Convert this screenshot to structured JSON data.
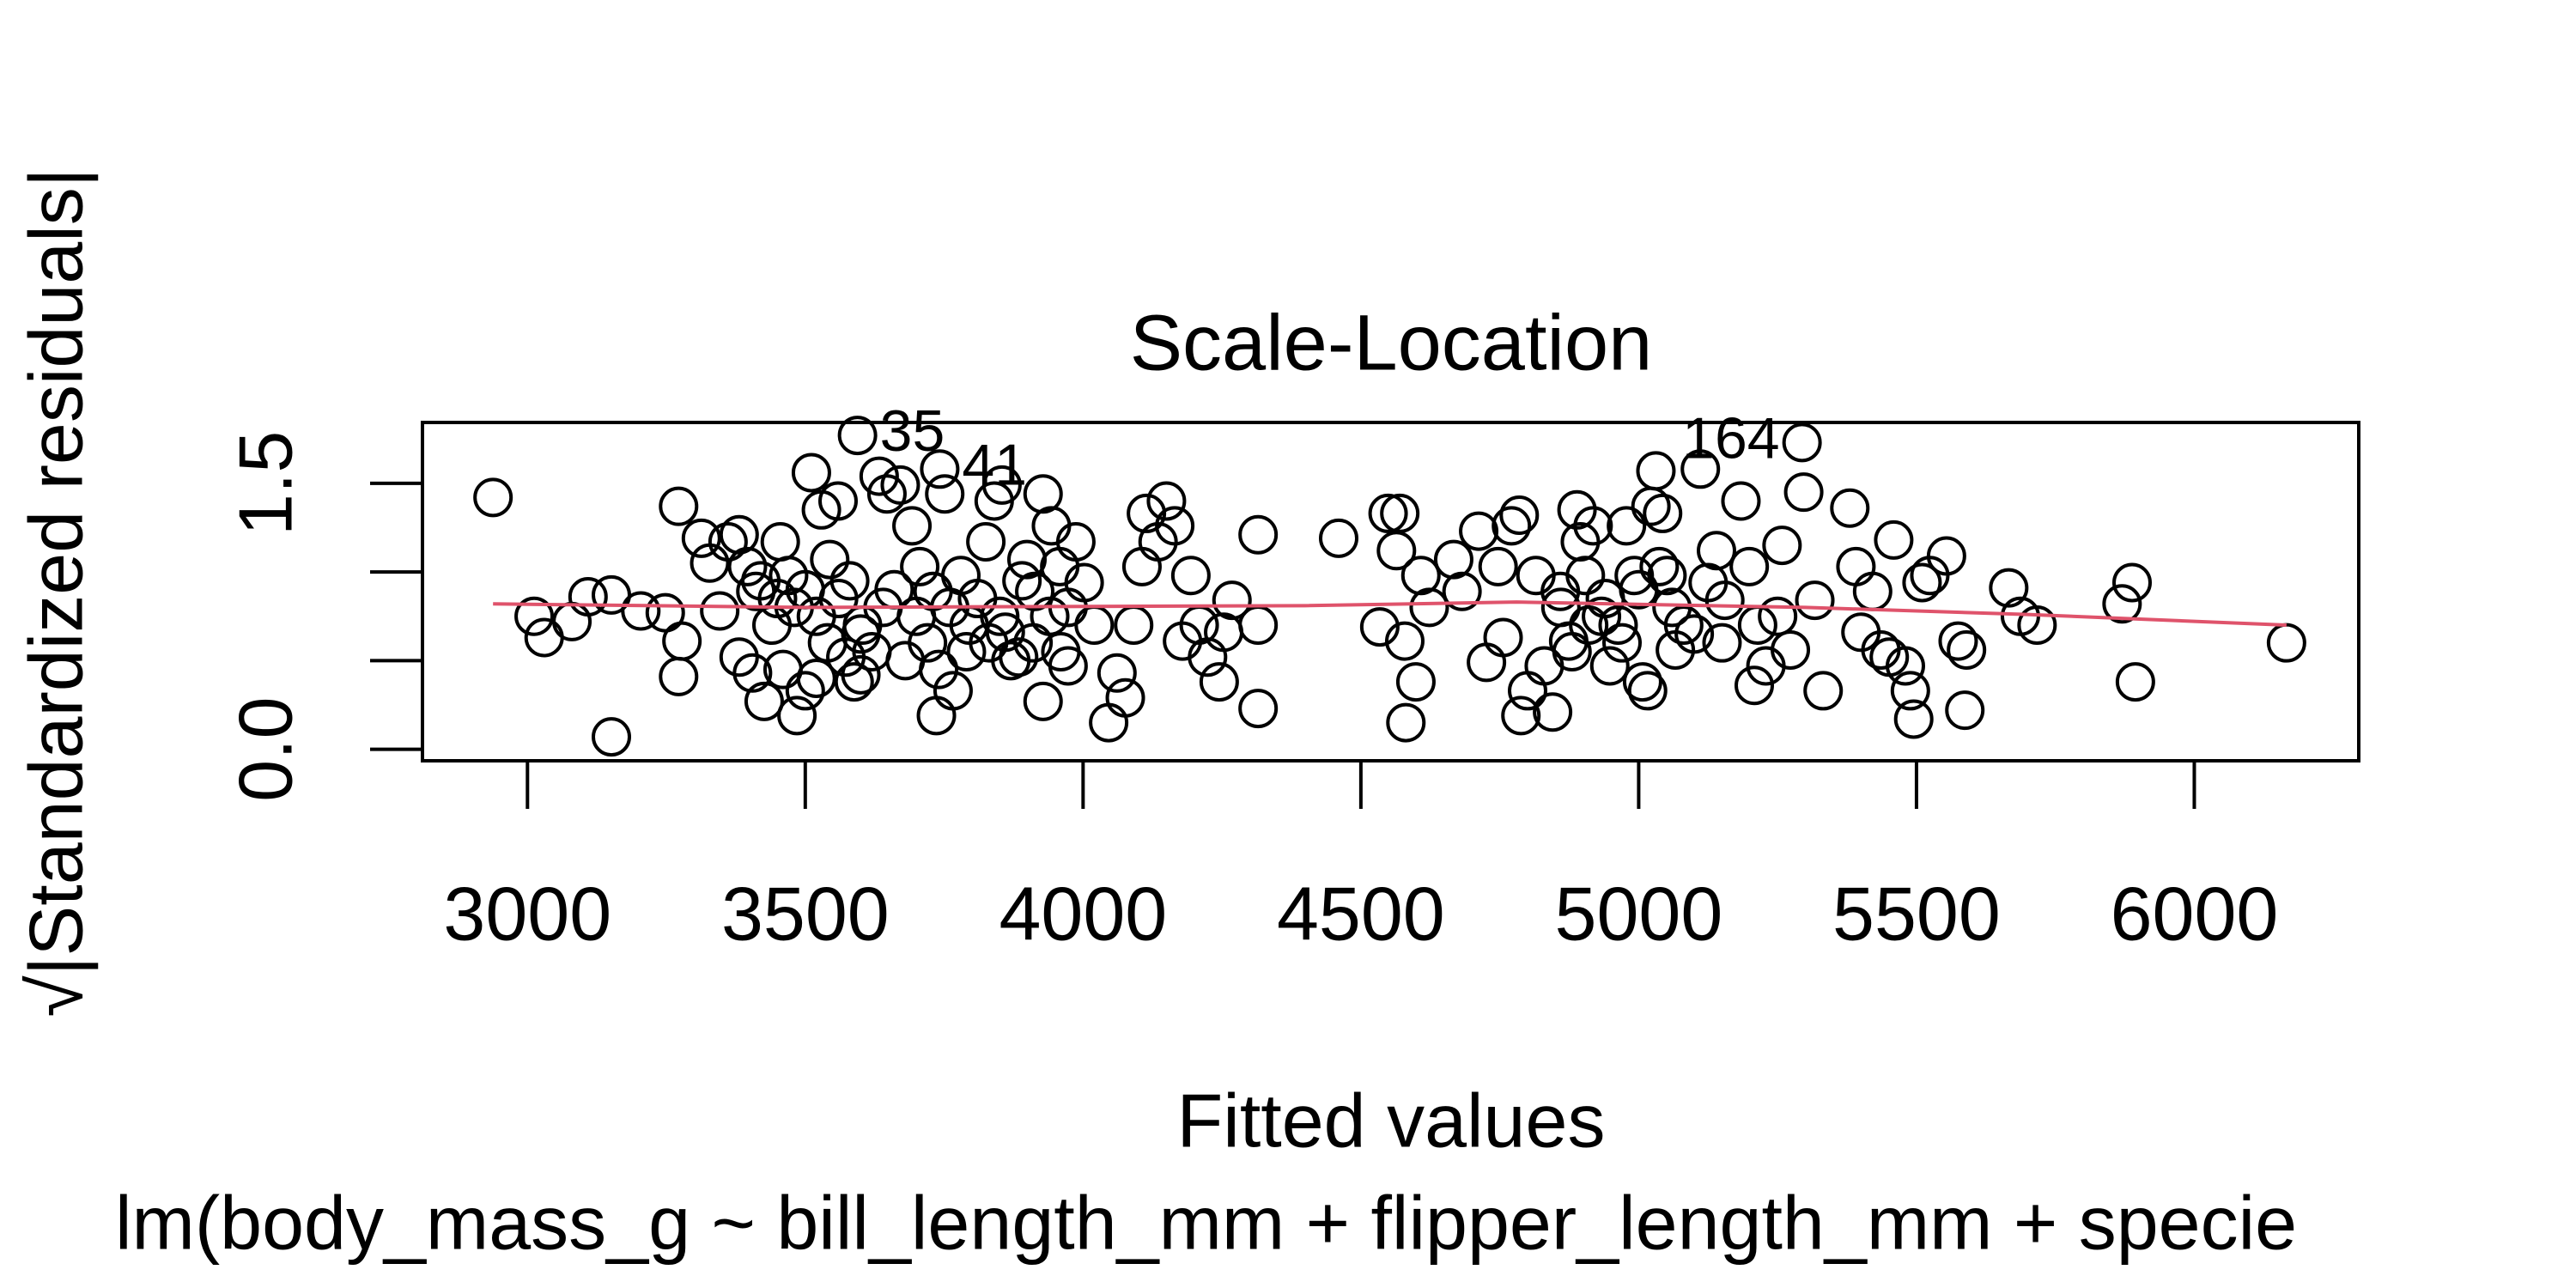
{
  "chart_data": {
    "type": "scatter",
    "title": "Scale-Location",
    "x_label": "Fitted values",
    "y_label": "√|Standardized residuals|",
    "subtitle": "lm(body_mass_g ~ bill_length_mm + flipper_length_mm + specie",
    "x": [
      2938,
      3012,
      3030,
      3080,
      3109,
      3151,
      3151,
      3204,
      3248,
      3272,
      3272,
      3278,
      3313,
      3328,
      3346,
      3361,
      3381,
      3396,
      3411,
      3381,
      3405,
      3426,
      3440,
      3455,
      3470,
      3485,
      3500,
      3511,
      3529,
      3544,
      3559,
      3573,
      3588,
      3603,
      3594,
      3633,
      3647,
      3671,
      3692,
      3706,
      3730,
      3742,
      3751,
      3736,
      3766,
      3780,
      3795,
      3825,
      3840,
      3854,
      3860,
      3884,
      3899,
      3913,
      3928,
      3943,
      3958,
      3973,
      3987,
      4002,
      3928,
      3973,
      4046,
      4061,
      4076,
      4091,
      4106,
      4114,
      4135,
      4150,
      4165,
      4179,
      4194,
      4209,
      4224,
      4245,
      4253,
      4268,
      4315,
      4315,
      4315,
      4460,
      4534,
      4549,
      4564,
      4570,
      4579,
      4581,
      4599,
      4608,
      4623,
      4667,
      4682,
      4712,
      4726,
      4747,
      4756,
      4771,
      4785,
      4788,
      4800,
      4815,
      4830,
      4845,
      4859,
      4874,
      4889,
      4895,
      4904,
      4918,
      4933,
      4948,
      4963,
      4978,
      4992,
      5007,
      5016,
      5022,
      5031,
      5037,
      5043,
      5051,
      5066,
      5081,
      5111,
      5125,
      5140,
      5155,
      5184,
      5199,
      5208,
      5214,
      5229,
      5258,
      5273,
      5294,
      5297,
      5317,
      5332,
      5380,
      5391,
      5400,
      5421,
      5436,
      5451,
      5459,
      5480,
      5489,
      5495,
      5510,
      5524,
      5554,
      5575,
      5587,
      5590,
      5666,
      5687,
      5717,
      5870,
      5888,
      5894,
      6166,
      3420,
      3450,
      3480,
      3500,
      3520,
      3540,
      3560,
      3580,
      3600,
      3620,
      3640,
      3660,
      3680,
      3700,
      3720,
      3740,
      3760,
      3790,
      3810,
      3830,
      3850,
      3870,
      3890,
      3910,
      3940,
      3960,
      4020,
      4860,
      4880,
      4910,
      4940,
      4970,
      5000,
      5060,
      5100,
      5150,
      5250,
      3460,
      3520,
      3600
    ],
    "values": [
      1.42,
      0.75,
      0.63,
      0.72,
      0.86,
      0.87,
      0.07,
      0.78,
      0.77,
      1.37,
      0.41,
      0.61,
      1.19,
      1.05,
      0.78,
      1.17,
      1.21,
      1.03,
      0.89,
      0.52,
      0.43,
      0.27,
      0.7,
      1.17,
      0.98,
      0.19,
      0.33,
      1.56,
      1.35,
      1.07,
      1.4,
      0.52,
      0.38,
      0.7,
      1.77,
      1.54,
      1.44,
      1.49,
      1.26,
      1.03,
      0.89,
      1.58,
      1.44,
      0.19,
      0.33,
      0.98,
      0.7,
      1.17,
      1.4,
      1.49,
      0.66,
      0.52,
      1.07,
      0.89,
      1.44,
      1.26,
      1.03,
      0.8,
      1.17,
      0.94,
      0.27,
      0.47,
      0.15,
      0.43,
      0.29,
      0.7,
      1.03,
      1.33,
      1.17,
      1.4,
      1.26,
      0.61,
      0.98,
      0.7,
      0.52,
      0.38,
      0.66,
      0.84,
      1.21,
      0.7,
      0.23,
      1.19,
      0.69,
      1.33,
      1.12,
      1.33,
      0.61,
      0.15,
      0.38,
      0.98,
      0.8,
      1.07,
      0.89,
      1.23,
      0.49,
      1.03,
      0.63,
      1.26,
      1.32,
      0.19,
      0.33,
      0.98,
      0.47,
      0.21,
      0.89,
      0.61,
      1.35,
      1.17,
      0.98,
      1.26,
      0.75,
      0.47,
      0.7,
      1.26,
      0.98,
      0.38,
      0.33,
      1.37,
      1.57,
      1.03,
      1.33,
      0.98,
      0.56,
      0.7,
      1.58,
      0.94,
      1.12,
      0.84,
      1.4,
      1.03,
      0.36,
      0.7,
      0.47,
      1.15,
      0.56,
      1.73,
      1.45,
      0.84,
      0.33,
      1.36,
      1.03,
      0.66,
      0.89,
      0.56,
      0.52,
      1.18,
      0.47,
      0.33,
      0.17,
      0.94,
      0.98,
      1.09,
      0.61,
      0.22,
      0.56,
      0.91,
      0.75,
      0.7,
      0.82,
      0.94,
      0.38,
      0.6,
      0.95,
      0.85,
      0.8,
      0.9,
      0.75,
      0.6,
      0.85,
      0.95,
      0.65,
      0.55,
      0.8,
      0.9,
      0.5,
      0.75,
      0.6,
      0.45,
      0.8,
      0.55,
      0.85,
      0.6,
      0.75,
      0.5,
      0.95,
      0.6,
      0.75,
      0.55,
      0.7,
      0.8,
      0.55,
      0.7,
      0.85,
      0.6,
      0.9,
      0.8,
      0.65,
      0.6,
      0.75,
      0.45,
      0.4,
      0.42
    ],
    "color": "#000000",
    "smooth": {
      "x": [
        2938,
        3500,
        4400,
        4780,
        5300,
        5700,
        6166
      ],
      "values": [
        0.82,
        0.8,
        0.81,
        0.83,
        0.8,
        0.76,
        0.7
      ],
      "color": "#DF536B"
    },
    "annotations": [
      {
        "text": "35",
        "x": 3594,
        "y": 1.77
      },
      {
        "text": "41",
        "x": 3742,
        "y": 1.58
      },
      {
        "text": "164",
        "x": 5294,
        "y": 1.73
      }
    ],
    "xlim": [
      2811,
      6296
    ],
    "ylim": [
      -0.065,
      1.843
    ],
    "xticks": [
      3000,
      3500,
      4000,
      4500,
      5000,
      5500,
      6000
    ],
    "yticks": [
      {
        "value": 0,
        "label": "0.0"
      },
      {
        "value": 0.5,
        "label": null
      },
      {
        "value": 1,
        "label": null
      },
      {
        "value": 1.5,
        "label": "1.5"
      }
    ],
    "grid": false
  }
}
